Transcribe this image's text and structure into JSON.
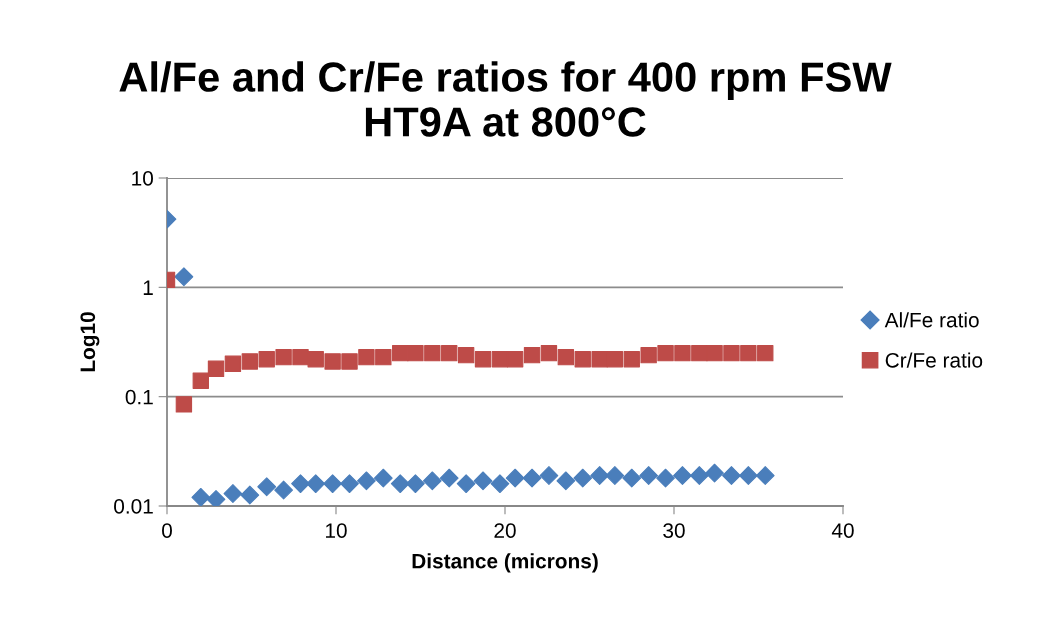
{
  "chart_data": {
    "type": "scatter",
    "title": "Al/Fe and Cr/Fe ratios for 400 rpm FSW\nHT9A at 800°C",
    "xlabel": "Distance (microns)",
    "ylabel": "Log10",
    "x": [
      0,
      1.0,
      2.0,
      2.9,
      3.9,
      4.9,
      5.9,
      6.9,
      7.9,
      8.8,
      9.8,
      10.8,
      11.8,
      12.8,
      13.8,
      14.7,
      15.7,
      16.7,
      17.7,
      18.7,
      19.7,
      20.6,
      21.6,
      22.6,
      23.6,
      24.6,
      25.6,
      26.5,
      27.5,
      28.5,
      29.5,
      30.5,
      31.5,
      32.4,
      33.4,
      34.4,
      35.4
    ],
    "series": [
      {
        "name": "Al/Fe ratio",
        "color": "#4a7ebb",
        "marker": "diamond",
        "values": [
          4.2,
          1.25,
          0.012,
          0.0115,
          0.013,
          0.0126,
          0.015,
          0.014,
          0.016,
          0.016,
          0.016,
          0.016,
          0.017,
          0.018,
          0.016,
          0.016,
          0.017,
          0.018,
          0.016,
          0.017,
          0.016,
          0.018,
          0.018,
          0.019,
          0.017,
          0.018,
          0.019,
          0.019,
          0.018,
          0.019,
          0.018,
          0.019,
          0.019,
          0.02,
          0.019,
          0.019,
          0.019
        ]
      },
      {
        "name": "Cr/Fe ratio",
        "color": "#be4b48",
        "marker": "square",
        "values": [
          1.17,
          0.085,
          0.14,
          0.18,
          0.2,
          0.21,
          0.22,
          0.23,
          0.23,
          0.22,
          0.21,
          0.21,
          0.23,
          0.23,
          0.25,
          0.25,
          0.25,
          0.25,
          0.24,
          0.22,
          0.22,
          0.22,
          0.24,
          0.25,
          0.23,
          0.22,
          0.22,
          0.22,
          0.22,
          0.24,
          0.25,
          0.25,
          0.25,
          0.25,
          0.25,
          0.25,
          0.25
        ]
      }
    ],
    "log": "y",
    "xlim": [
      0,
      40
    ],
    "xticks": [
      0,
      10,
      20,
      30,
      40
    ],
    "ylim": [
      0.01,
      10
    ],
    "yticks": [
      0.01,
      0.1,
      1,
      10
    ],
    "grid": "y",
    "legend": "right"
  }
}
